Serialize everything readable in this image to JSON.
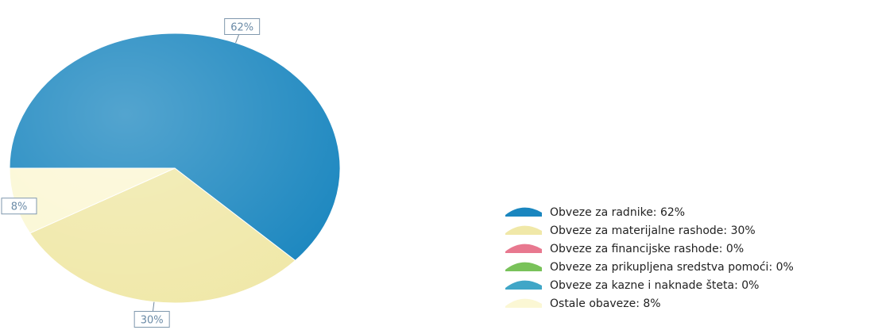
{
  "chart_data": {
    "type": "pie",
    "slices": [
      {
        "label": "Obveze za radnike",
        "value": 62,
        "display": "62%",
        "legend": "Obveze za radnike: 62%",
        "color": "#1a86bf"
      },
      {
        "label": "Obveze za materijalne rashode",
        "value": 30,
        "display": "30%",
        "legend": "Obveze za materijalne rashode: 30%",
        "color": "#f0e8a8"
      },
      {
        "label": "Obveze za financijske rashode",
        "value": 0,
        "display": "0%",
        "legend": "Obveze za financijske rashode: 0%",
        "color": "#e8788f"
      },
      {
        "label": "Obveze za prikupljena sredstva pomoći",
        "value": 0,
        "display": "0%",
        "legend": "Obveze za prikupljena sredstva pomoći: 0%",
        "color": "#79c25a"
      },
      {
        "label": "Obveze za kazne i naknade šteta",
        "value": 0,
        "display": "0%",
        "legend": "Obveze za kazne i naknade šteta: 0%",
        "color": "#40a6c7"
      },
      {
        "label": "Ostale obaveze",
        "value": 8,
        "display": "8%",
        "legend": "Ostale obaveze: 8%",
        "color": "#fbf7d4"
      }
    ],
    "legend_position": "right"
  }
}
